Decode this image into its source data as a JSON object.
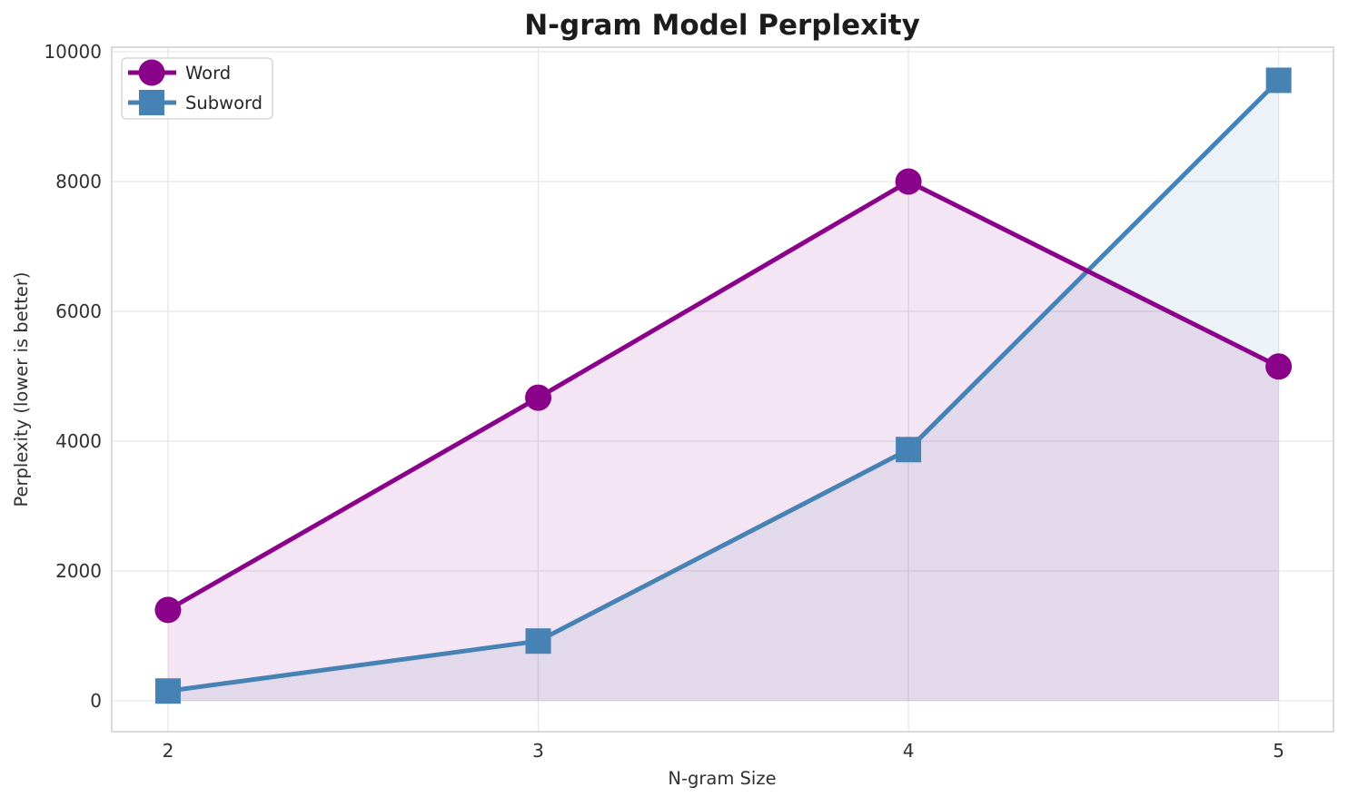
{
  "chart_data": {
    "type": "line",
    "title": "N-gram Model Perplexity",
    "xlabel": "N-gram Size",
    "ylabel": "Perplexity (lower is better)",
    "x": [
      2,
      3,
      4,
      5
    ],
    "x_tick_labels": [
      "2",
      "3",
      "4",
      "5"
    ],
    "y_ticks": [
      0,
      2000,
      4000,
      6000,
      8000,
      10000
    ],
    "y_tick_labels": [
      "0",
      "2000",
      "4000",
      "6000",
      "8000",
      "10000"
    ],
    "xlim": [
      1.848,
      5.148
    ],
    "ylim": [
      -476,
      10070
    ],
    "grid": true,
    "grid_color": "#e7e7e7",
    "spine_color": "#cfcfcf",
    "legend_position": "upper left",
    "fill_to_zero": true,
    "series": [
      {
        "name": "Word",
        "marker": "circle",
        "color": "#8a018a",
        "fill_rgba": "rgba(138,1,138,0.10)",
        "values": [
          1400,
          4670,
          8000,
          5150
        ]
      },
      {
        "name": "Subword",
        "marker": "square",
        "color": "#4682b4",
        "fill_rgba": "rgba(70,130,180,0.10)",
        "values": [
          150,
          920,
          3870,
          9560
        ]
      }
    ]
  }
}
